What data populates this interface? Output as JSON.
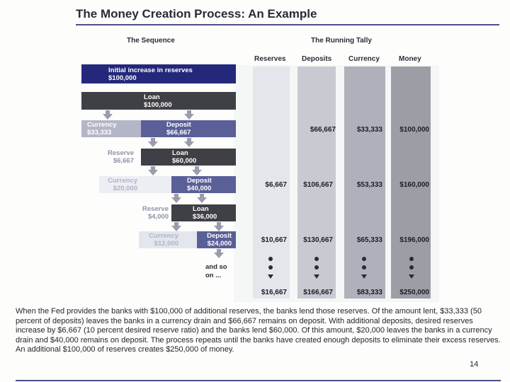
{
  "title": "The Money Creation Process: An Example",
  "sequence_heading": "The Sequence",
  "tally_heading": "The Running Tally",
  "columns": [
    "Reserves",
    "Deposits",
    "Currency",
    "Money"
  ],
  "steps": {
    "initial": {
      "label": "Initial increase in reserves",
      "value": "$100,000"
    },
    "loan1": {
      "label": "Loan",
      "value": "$100,000"
    },
    "currency1": {
      "label": "Currency",
      "value": "$33,333"
    },
    "deposit1": {
      "label": "Deposit",
      "value": "$66,667"
    },
    "reserve2": {
      "label": "Reserve",
      "value": "$6,667"
    },
    "loan2": {
      "label": "Loan",
      "value": "$60,000"
    },
    "currency2": {
      "label": "Currency",
      "value": "$20,000"
    },
    "deposit2": {
      "label": "Deposit",
      "value": "$40,000"
    },
    "reserve3": {
      "label": "Reserve",
      "value": "$4,000"
    },
    "loan3": {
      "label": "Loan",
      "value": "$36,000"
    },
    "currency3": {
      "label": "Currency",
      "value": "$12,000"
    },
    "deposit3": {
      "label": "Deposit",
      "value": "$24,000"
    },
    "and_so_on_1": "and so",
    "and_so_on_2": "on ..."
  },
  "tally_rows": [
    {
      "reserves": "",
      "deposits": "$66,667",
      "currency": "$33,333",
      "money": "$100,000"
    },
    {
      "reserves": "$6,667",
      "deposits": "$106,667",
      "currency": "$53,333",
      "money": "$160,000"
    },
    {
      "reserves": "$10,667",
      "deposits": "$130,667",
      "currency": "$65,333",
      "money": "$196,000"
    },
    {
      "reserves": "$16,667",
      "deposits": "$166,667",
      "currency": "$83,333",
      "money": "$250,000"
    }
  ],
  "caption": "When the Fed provides the banks with $100,000 of additional reserves, the banks lend those reserves. Of the amount lent, $33,333 (50 percent of deposits) leaves the banks in a currency drain and $66,667 remains on deposit. With additional deposits, desired reserves increase by $6,667 (10 percent desired reserve ratio) and the banks lend $60,000. Of this amount, $20,000 leaves the banks in a currency drain and $40,000 remains on deposit. The process repeats until the banks have created enough deposits to eliminate their excess reserves. An additional $100,000 of reserves creates $250,000 of money.",
  "page_number": "14",
  "colors": {
    "navy": "#24287a",
    "dark": "#3f3f46",
    "light": "#b4b6c7",
    "rule": "#4c4f86"
  }
}
